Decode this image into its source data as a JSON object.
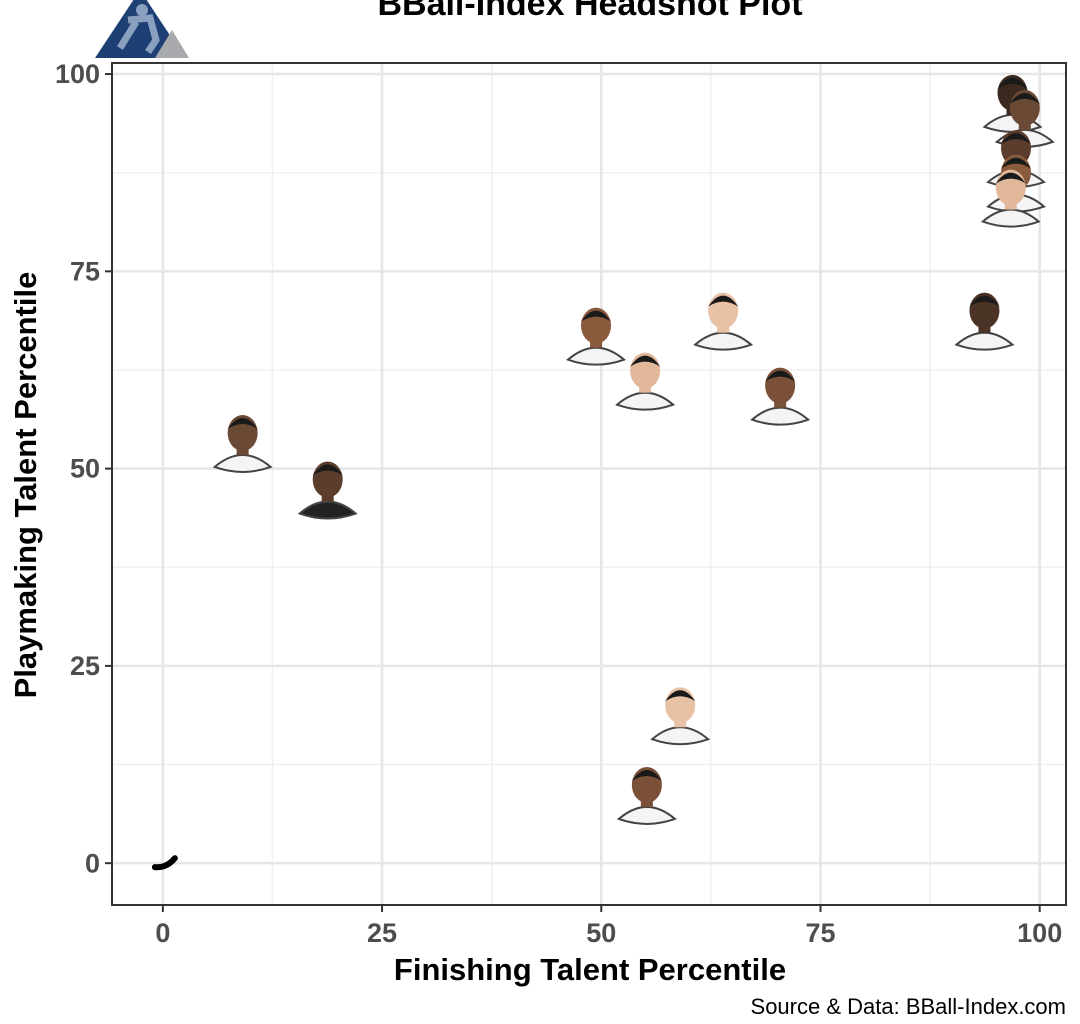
{
  "chart_data": {
    "type": "scatter",
    "title": "BBall-Index Headshot Plot",
    "x_label": "Finishing Talent Percentile",
    "y_label": "Playmaking Talent Percentile",
    "caption": "Source & Data: BBall-Index.com",
    "x": [
      0,
      9.1,
      18.8,
      49.4,
      55,
      63.9,
      70.4,
      93.7,
      96.9,
      98.3,
      97.3,
      97.3,
      96.7,
      59,
      55.2
    ],
    "y": [
      0,
      53.5,
      47.6,
      67.1,
      61.4,
      69,
      59.5,
      69,
      96.6,
      94.7,
      89.6,
      86.5,
      84.6,
      19,
      8.9
    ],
    "xlim": [
      -5.8,
      103
    ],
    "ylim": [
      -5.3,
      101.4
    ],
    "xticks": [
      0,
      25,
      50,
      75,
      100
    ],
    "yticks": [
      0,
      25,
      50,
      75,
      100
    ],
    "grid": true
  }
}
